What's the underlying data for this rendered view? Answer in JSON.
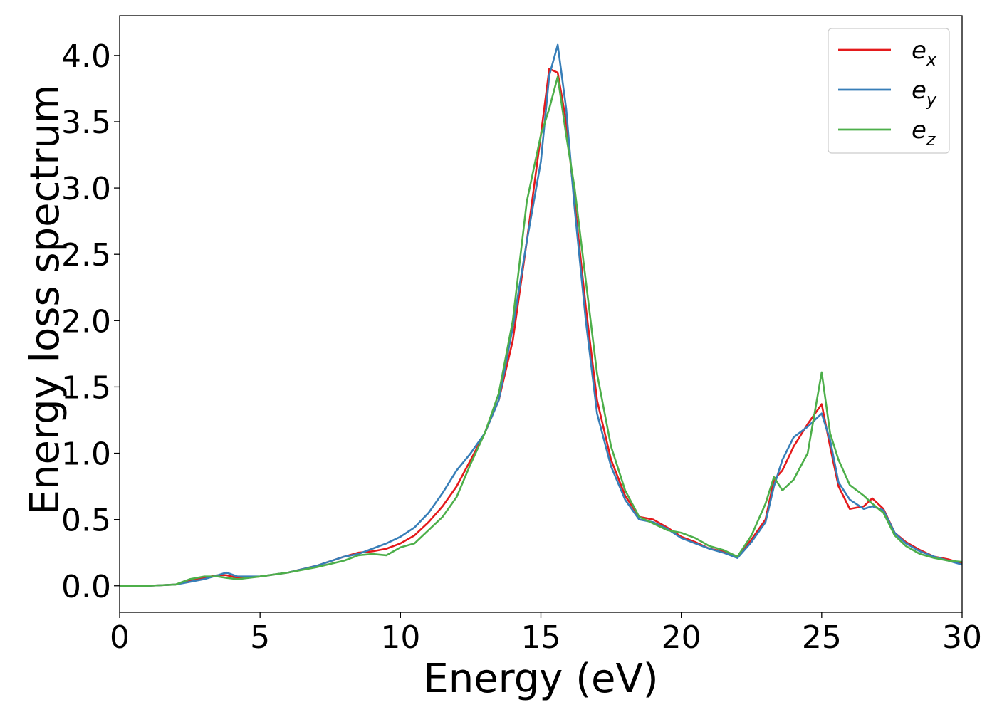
{
  "chart_data": {
    "type": "line",
    "title": "",
    "xlabel": "Energy (eV)",
    "ylabel": "Energy loss spectrum",
    "xlim": [
      0,
      30
    ],
    "ylim": [
      -0.2,
      4.3
    ],
    "xticks": [
      0,
      5,
      10,
      15,
      20,
      25,
      30
    ],
    "xtick_labels": [
      "0",
      "5",
      "10",
      "15",
      "20",
      "25",
      "30"
    ],
    "yticks": [
      0.0,
      0.5,
      1.0,
      1.5,
      2.0,
      2.5,
      3.0,
      3.5,
      4.0
    ],
    "ytick_labels": [
      "0.0",
      "0.5",
      "1.0",
      "1.5",
      "2.0",
      "2.5",
      "3.0",
      "3.5",
      "4.0"
    ],
    "grid": false,
    "legend_position": "top-right",
    "series": [
      {
        "name": "e",
        "subscript": "x",
        "color": "#e41a1c",
        "x": [
          0,
          1,
          2,
          2.5,
          3,
          3.5,
          3.8,
          4.2,
          5,
          6,
          7,
          8,
          8.5,
          9,
          9.5,
          10,
          10.5,
          11,
          11.5,
          12,
          12.5,
          13,
          13.5,
          14,
          14.5,
          15,
          15.3,
          15.6,
          15.9,
          16.2,
          16.6,
          17,
          17.5,
          18,
          18.5,
          19,
          19.5,
          20,
          20.5,
          21,
          21.5,
          22,
          22.5,
          23,
          23.3,
          23.6,
          24,
          24.5,
          25,
          25.3,
          25.6,
          26,
          26.5,
          26.8,
          27.2,
          27.6,
          28,
          28.5,
          29,
          29.5,
          30
        ],
        "y": [
          0.0,
          0.0,
          0.01,
          0.04,
          0.06,
          0.08,
          0.08,
          0.06,
          0.07,
          0.1,
          0.15,
          0.22,
          0.25,
          0.26,
          0.28,
          0.32,
          0.38,
          0.48,
          0.6,
          0.75,
          0.95,
          1.15,
          1.4,
          1.85,
          2.6,
          3.4,
          3.9,
          3.87,
          3.5,
          2.9,
          2.1,
          1.4,
          0.95,
          0.68,
          0.52,
          0.5,
          0.44,
          0.37,
          0.33,
          0.28,
          0.26,
          0.22,
          0.35,
          0.5,
          0.8,
          0.87,
          1.05,
          1.22,
          1.37,
          1.05,
          0.75,
          0.58,
          0.6,
          0.66,
          0.58,
          0.4,
          0.33,
          0.27,
          0.22,
          0.2,
          0.17
        ]
      },
      {
        "name": "e",
        "subscript": "y",
        "color": "#377eb8",
        "x": [
          0,
          1,
          2,
          2.5,
          3,
          3.5,
          3.8,
          4.2,
          5,
          6,
          7,
          8,
          8.5,
          9,
          9.5,
          10,
          10.5,
          11,
          11.5,
          12,
          12.5,
          13,
          13.5,
          14,
          14.5,
          15,
          15.3,
          15.6,
          15.9,
          16.2,
          16.6,
          17,
          17.5,
          18,
          18.5,
          19,
          19.5,
          20,
          20.5,
          21,
          21.5,
          22,
          22.5,
          23,
          23.3,
          23.6,
          24,
          24.5,
          25,
          25.3,
          25.6,
          26,
          26.5,
          26.8,
          27.2,
          27.6,
          28,
          28.5,
          29,
          29.5,
          30
        ],
        "y": [
          0.0,
          0.0,
          0.01,
          0.03,
          0.05,
          0.08,
          0.1,
          0.07,
          0.07,
          0.1,
          0.15,
          0.22,
          0.24,
          0.28,
          0.32,
          0.37,
          0.44,
          0.55,
          0.7,
          0.87,
          1.0,
          1.15,
          1.4,
          1.95,
          2.6,
          3.2,
          3.85,
          4.08,
          3.6,
          2.85,
          2.0,
          1.3,
          0.9,
          0.65,
          0.5,
          0.48,
          0.43,
          0.36,
          0.32,
          0.28,
          0.25,
          0.21,
          0.33,
          0.48,
          0.75,
          0.95,
          1.12,
          1.2,
          1.3,
          1.1,
          0.78,
          0.65,
          0.58,
          0.6,
          0.57,
          0.4,
          0.32,
          0.26,
          0.22,
          0.19,
          0.16
        ]
      },
      {
        "name": "e",
        "subscript": "z",
        "color": "#4daf4a",
        "x": [
          0,
          1,
          2,
          2.5,
          3,
          3.5,
          3.8,
          4.2,
          5,
          6,
          7,
          8,
          8.5,
          9,
          9.5,
          10,
          10.5,
          11,
          11.5,
          12,
          12.5,
          13,
          13.5,
          14,
          14.5,
          15,
          15.3,
          15.6,
          15.9,
          16.2,
          16.6,
          17,
          17.5,
          18,
          18.5,
          19,
          19.5,
          20,
          20.5,
          21,
          21.5,
          22,
          22.5,
          23,
          23.3,
          23.6,
          24,
          24.5,
          25,
          25.3,
          25.6,
          26,
          26.5,
          26.8,
          27.2,
          27.6,
          28,
          28.5,
          29,
          29.5,
          30
        ],
        "y": [
          0.0,
          0.0,
          0.01,
          0.05,
          0.07,
          0.07,
          0.06,
          0.05,
          0.07,
          0.1,
          0.14,
          0.19,
          0.23,
          0.24,
          0.23,
          0.29,
          0.32,
          0.42,
          0.52,
          0.67,
          0.92,
          1.15,
          1.45,
          2.0,
          2.9,
          3.4,
          3.6,
          3.84,
          3.4,
          3.0,
          2.3,
          1.6,
          1.05,
          0.72,
          0.52,
          0.47,
          0.42,
          0.4,
          0.36,
          0.3,
          0.27,
          0.22,
          0.38,
          0.62,
          0.82,
          0.72,
          0.8,
          1.0,
          1.61,
          1.15,
          0.95,
          0.76,
          0.68,
          0.62,
          0.55,
          0.38,
          0.3,
          0.24,
          0.21,
          0.19,
          0.18
        ]
      }
    ]
  }
}
